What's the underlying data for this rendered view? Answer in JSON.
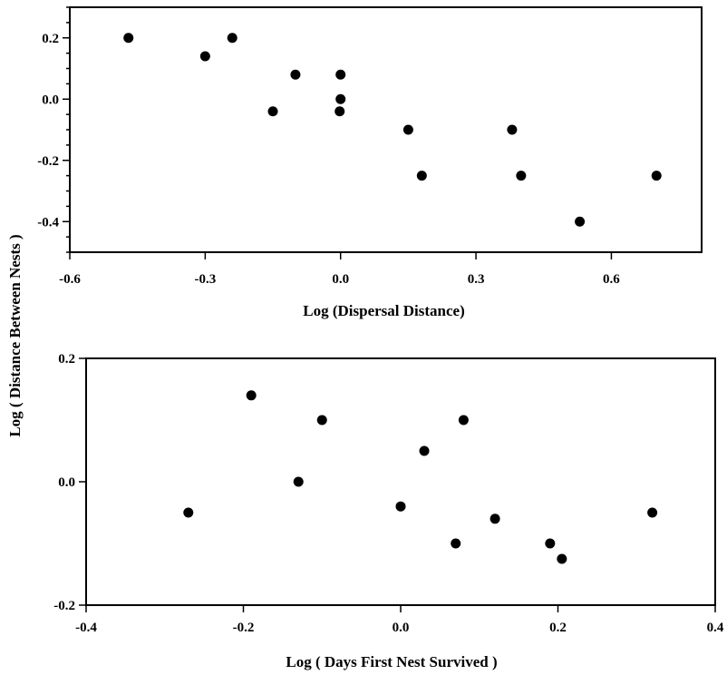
{
  "shared_ylabel": "Log ( Distance Between Nests )",
  "chart_data": [
    {
      "type": "scatter",
      "xlabel": "Log (Dispersal Distance)",
      "xlim": [
        -0.6,
        0.8
      ],
      "ylim": [
        -0.5,
        0.3
      ],
      "xticks": [
        -0.6,
        -0.3,
        0.0,
        0.3,
        0.6
      ],
      "xtick_labels": [
        "-0.6",
        "-0.3",
        "0.0",
        "0.3",
        "0.6"
      ],
      "yticks": [
        -0.4,
        -0.2,
        0.0,
        0.2
      ],
      "ytick_labels": [
        "-0.4",
        "-0.2",
        "0.0",
        "0.2"
      ],
      "y_minor_step": 0.05,
      "marker_color": "#000000",
      "points": [
        {
          "x": -0.47,
          "y": 0.2
        },
        {
          "x": -0.3,
          "y": 0.14
        },
        {
          "x": -0.24,
          "y": 0.2
        },
        {
          "x": -0.15,
          "y": -0.04
        },
        {
          "x": -0.1,
          "y": 0.08
        },
        {
          "x": 0.0,
          "y": 0.08
        },
        {
          "x": 0.0,
          "y": 0.0
        },
        {
          "x": -0.002,
          "y": -0.04
        },
        {
          "x": 0.15,
          "y": -0.1
        },
        {
          "x": 0.18,
          "y": -0.25
        },
        {
          "x": 0.38,
          "y": -0.1
        },
        {
          "x": 0.4,
          "y": -0.25
        },
        {
          "x": 0.53,
          "y": -0.4
        },
        {
          "x": 0.7,
          "y": -0.25
        }
      ]
    },
    {
      "type": "scatter",
      "xlabel": "Log ( Days First Nest Survived )",
      "xlim": [
        -0.4,
        0.4
      ],
      "ylim": [
        -0.2,
        0.2
      ],
      "xticks": [
        -0.4,
        -0.2,
        0.0,
        0.2,
        0.4
      ],
      "xtick_labels": [
        "-0.4",
        "-0.2",
        "0.0",
        "0.2",
        "0.4"
      ],
      "yticks": [
        -0.2,
        0.0,
        0.2
      ],
      "ytick_labels": [
        "-0.2",
        "0.0",
        "0.2"
      ],
      "marker_color": "#000000",
      "points": [
        {
          "x": -0.27,
          "y": -0.05
        },
        {
          "x": -0.19,
          "y": 0.14
        },
        {
          "x": -0.13,
          "y": 0.0
        },
        {
          "x": -0.1,
          "y": 0.1
        },
        {
          "x": 0.0,
          "y": -0.04
        },
        {
          "x": 0.03,
          "y": 0.05
        },
        {
          "x": 0.07,
          "y": -0.1
        },
        {
          "x": 0.08,
          "y": 0.1
        },
        {
          "x": 0.12,
          "y": -0.06
        },
        {
          "x": 0.19,
          "y": -0.1
        },
        {
          "x": 0.205,
          "y": -0.125
        },
        {
          "x": 0.32,
          "y": -0.05
        }
      ]
    }
  ]
}
